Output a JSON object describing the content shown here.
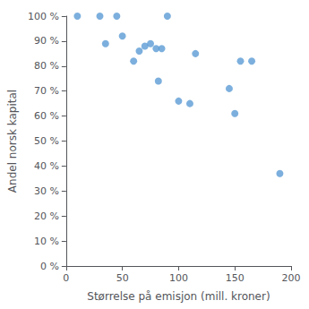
{
  "chart_data": {
    "type": "scatter",
    "x": [
      10,
      30,
      35,
      45,
      50,
      60,
      65,
      70,
      75,
      80,
      82,
      85,
      90,
      100,
      110,
      115,
      145,
      150,
      155,
      165,
      190
    ],
    "values": [
      100,
      100,
      89,
      100,
      92,
      82,
      86,
      88,
      89,
      87,
      74,
      87,
      100,
      66,
      65,
      85,
      71,
      61,
      82,
      82,
      37
    ],
    "xlabel": "Størrelse på emisjon (mill. kroner)",
    "ylabel": "Andel norsk kapital",
    "xlim": [
      0,
      200
    ],
    "ylim": [
      0,
      100
    ],
    "xticks": [
      0,
      50,
      100,
      150,
      200
    ],
    "yticks": [
      {
        "value": 0,
        "label": "0 %"
      },
      {
        "value": 10,
        "label": "10 %"
      },
      {
        "value": 20,
        "label": "20 %"
      },
      {
        "value": 30,
        "label": "30 %"
      },
      {
        "value": 40,
        "label": "40 %"
      },
      {
        "value": 50,
        "label": "50 %"
      },
      {
        "value": 60,
        "label": "60 %"
      },
      {
        "value": 70,
        "label": "70 %"
      },
      {
        "value": 80,
        "label": "80 %"
      },
      {
        "value": 90,
        "label": "90 %"
      },
      {
        "value": 100,
        "label": "100 %"
      }
    ],
    "color": "#5B9BD5",
    "grid": false
  }
}
